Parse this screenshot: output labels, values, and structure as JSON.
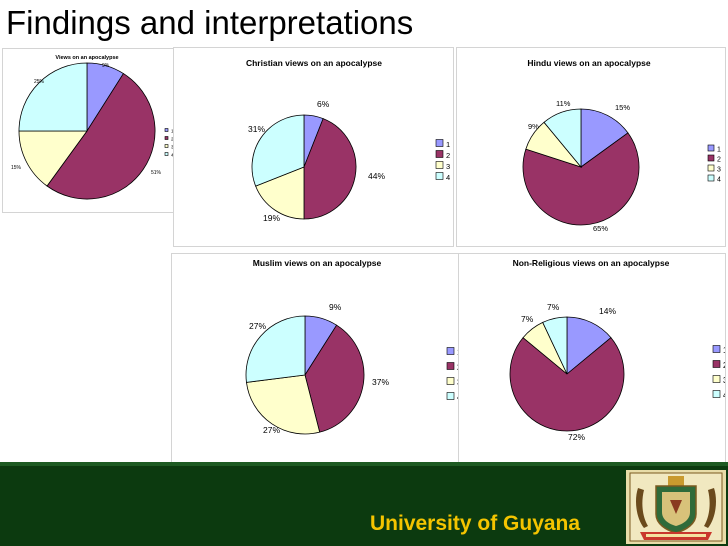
{
  "slide": {
    "title": "Findings and interpretations"
  },
  "footer": {
    "university": "University of Guyana"
  },
  "colors": {
    "slice1": "#9999ff",
    "slice2": "#993366",
    "slice3": "#ffffcc",
    "slice4": "#ccffff",
    "footer_bg": "#0c3a0f",
    "footer_text": "#f4c400"
  },
  "chart_data": [
    {
      "type": "pie",
      "title": "Views on an apocalypse",
      "categories": [
        "1",
        "2",
        "3",
        "4"
      ],
      "values": [
        9,
        51,
        15,
        25
      ],
      "labels": [
        "9%",
        "51%",
        "15%",
        "25%"
      ],
      "legend": "right"
    },
    {
      "type": "pie",
      "title": "Christian views on an apocalypse",
      "categories": [
        "1",
        "2",
        "3",
        "4"
      ],
      "values": [
        6,
        44,
        19,
        31
      ],
      "labels": [
        "6%",
        "44%",
        "19%",
        "31%"
      ],
      "legend": "right"
    },
    {
      "type": "pie",
      "title": "Hindu views on an apocalypse",
      "categories": [
        "1",
        "2",
        "3",
        "4"
      ],
      "values": [
        15,
        65,
        9,
        11
      ],
      "labels": [
        "15%",
        "65%",
        "9%",
        "11%"
      ],
      "legend": "right"
    },
    {
      "type": "pie",
      "title": "Muslim views on an apocalypse",
      "categories": [
        "1",
        "2",
        "3",
        "4"
      ],
      "values": [
        9,
        37,
        27,
        27
      ],
      "labels": [
        "9%",
        "37%",
        "27%",
        "27%"
      ],
      "legend": "right"
    },
    {
      "type": "pie",
      "title": "Non-Religious views on an apocalypse",
      "categories": [
        "1",
        "2",
        "3",
        "4"
      ],
      "values": [
        14,
        72,
        7,
        7
      ],
      "labels": [
        "14%",
        "72%",
        "7%",
        "7%"
      ],
      "legend": "right"
    }
  ]
}
